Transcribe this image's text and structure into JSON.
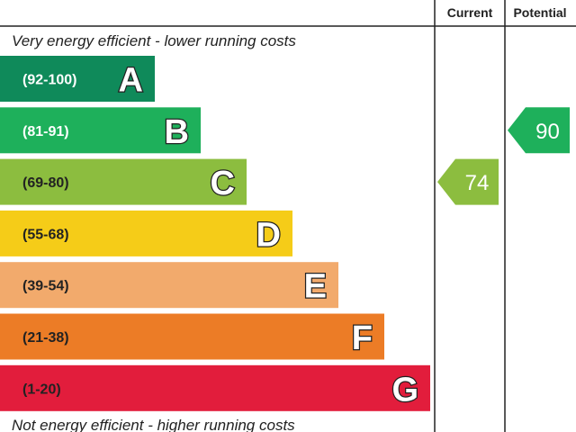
{
  "header": {
    "current_label": "Current",
    "potential_label": "Potential"
  },
  "top_note": "Very energy efficient - lower running costs",
  "bottom_note": "Not energy efficient - higher running costs",
  "chart_data": {
    "type": "bar",
    "categories": [
      "A",
      "B",
      "C",
      "D",
      "E",
      "F",
      "G"
    ],
    "ranges": [
      "(92-100)",
      "(81-91)",
      "(69-80)",
      "(55-68)",
      "(39-54)",
      "(21-38)",
      "(1-20)"
    ],
    "colors": [
      "#0f8a5a",
      "#1eb05b",
      "#8cbd3f",
      "#f5cc18",
      "#f2aa6c",
      "#ec7c26",
      "#e21d3c"
    ],
    "current": {
      "value": 74,
      "band": "C",
      "color": "#8cbd3f"
    },
    "potential": {
      "value": 90,
      "band": "B",
      "color": "#1eb05b"
    }
  }
}
